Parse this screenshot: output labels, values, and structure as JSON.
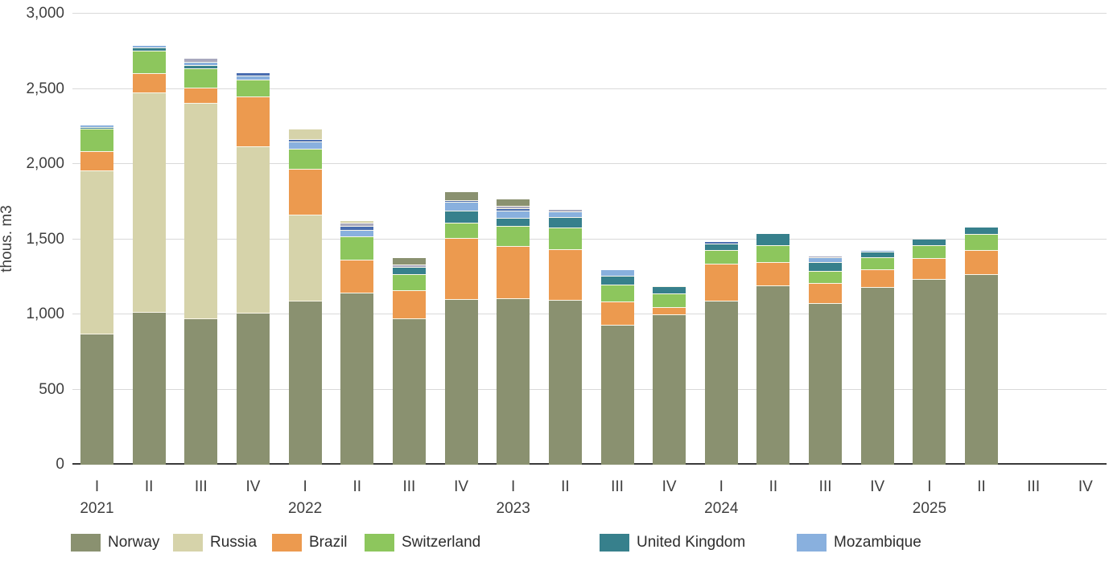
{
  "chart_data": {
    "type": "bar",
    "stacked": true,
    "ylabel": "thous. m3",
    "ylim": [
      0,
      3000
    ],
    "ytick_step": 500,
    "ytick_labels": [
      "0",
      "500",
      "1,000",
      "1,500",
      "2,000",
      "2,500",
      "3,000"
    ],
    "grid": true,
    "legend_position": "bottom",
    "quarter_labels": [
      "I",
      "II",
      "III",
      "IV",
      "I",
      "II",
      "III",
      "IV",
      "I",
      "II",
      "III",
      "IV",
      "I",
      "II",
      "III",
      "IV",
      "I",
      "II",
      "III",
      "IV"
    ],
    "year_labels": [
      {
        "label": "2021",
        "quarter_index": 0
      },
      {
        "label": "2022",
        "quarter_index": 4
      },
      {
        "label": "2023",
        "quarter_index": 8
      },
      {
        "label": "2024",
        "quarter_index": 12
      },
      {
        "label": "2025",
        "quarter_index": 16
      }
    ],
    "series": [
      {
        "name": "Norway",
        "in_legend": true,
        "color": "#8A9170",
        "values": [
          865,
          1010,
          970,
          1005,
          1085,
          1140,
          967,
          1096,
          1104,
          1092,
          926,
          997,
          1087,
          1188,
          1069,
          1176,
          1232,
          1260,
          0,
          0
        ]
      },
      {
        "name": "Russia",
        "in_legend": true,
        "color": "#D6D3AA",
        "values": [
          1085,
          1462,
          1432,
          1110,
          572,
          0,
          0,
          0,
          0,
          0,
          0,
          0,
          0,
          0,
          0,
          0,
          0,
          0,
          0,
          0
        ]
      },
      {
        "name": "Brazil",
        "in_legend": true,
        "color": "#EC9A4F",
        "values": [
          130,
          125,
          100,
          327,
          308,
          218,
          188,
          408,
          346,
          334,
          155,
          45,
          244,
          154,
          134,
          116,
          138,
          165,
          0,
          0
        ]
      },
      {
        "name": "Switzerland",
        "in_legend": true,
        "color": "#8DC65D",
        "values": [
          148,
          152,
          128,
          112,
          134,
          157,
          107,
          100,
          132,
          148,
          114,
          94,
          94,
          114,
          80,
          80,
          84,
          102,
          0,
          0
        ]
      },
      {
        "name": "United Kingdom",
        "in_legend": true,
        "color": "#37808C",
        "values": [
          14,
          20,
          21,
          0,
          0,
          0,
          48,
          80,
          57,
          66,
          59,
          45,
          41,
          77,
          59,
          41,
          46,
          50,
          0,
          0
        ]
      },
      {
        "name": "Mozambique",
        "in_legend": true,
        "color": "#89B0DE",
        "values": [
          16,
          15,
          24,
          30,
          45,
          41,
          0,
          60,
          44,
          41,
          42,
          0,
          0,
          0,
          35,
          8,
          0,
          0,
          0,
          0
        ]
      },
      {
        "name": "",
        "in_legend": false,
        "color": "#4A6DB0",
        "values": [
          0,
          0,
          0,
          18,
          18,
          25,
          0,
          12,
          18,
          0,
          0,
          0,
          18,
          0,
          0,
          0,
          0,
          0,
          0,
          0
        ]
      },
      {
        "name": "",
        "in_legend": false,
        "color": "#A9A9BE",
        "values": [
          0,
          0,
          27,
          0,
          0,
          23,
          18,
          0,
          16,
          17,
          0,
          9,
          0,
          0,
          9,
          0,
          0,
          0,
          0,
          0
        ]
      },
      {
        "name": "",
        "in_legend": false,
        "color": "#8A9170",
        "values": [
          0,
          0,
          0,
          0,
          0,
          0,
          46,
          55,
          47,
          0,
          0,
          0,
          0,
          0,
          0,
          0,
          0,
          0,
          0,
          0
        ]
      },
      {
        "name": "",
        "in_legend": false,
        "color": "#D6D3AA",
        "values": [
          0,
          0,
          0,
          0,
          70,
          18,
          0,
          0,
          0,
          0,
          0,
          0,
          0,
          0,
          0,
          0,
          0,
          0,
          0,
          0
        ]
      }
    ],
    "totals": [
      2258,
      2784,
      2702,
      2602,
      2232,
      1622,
      1374,
      1811,
      1764,
      1698,
      1296,
      1190,
      1484,
      1533,
      1386,
      1421,
      1500,
      1577,
      0,
      0
    ]
  },
  "axes": {
    "y_title": "thous. m3"
  },
  "legend": {
    "items": [
      {
        "label": "Norway"
      },
      {
        "label": "Russia"
      },
      {
        "label": "Brazil"
      },
      {
        "label": "Switzerland"
      },
      {
        "label": "United Kingdom"
      },
      {
        "label": "Mozambique"
      }
    ]
  }
}
